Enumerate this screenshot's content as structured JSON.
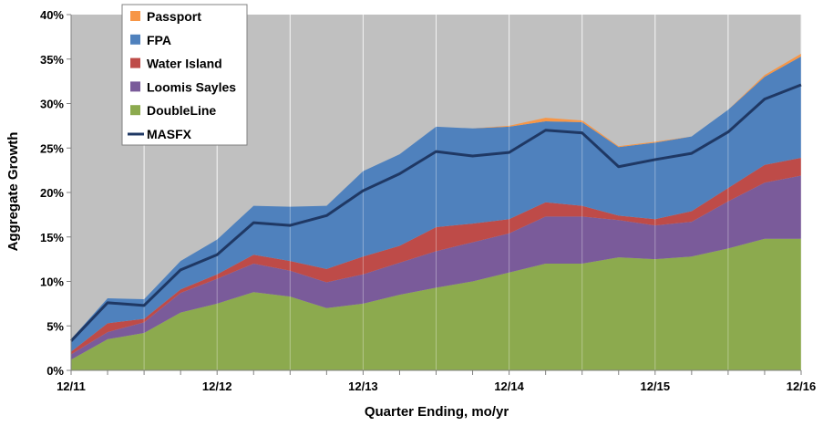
{
  "chart_data": {
    "type": "area",
    "title": "",
    "xlabel": "Quarter Ending, mo/yr",
    "ylabel": "Aggregate Growth",
    "ylim": [
      0,
      40
    ],
    "yticks": [
      "0%",
      "5%",
      "10%",
      "15%",
      "20%",
      "25%",
      "30%",
      "35%",
      "40%"
    ],
    "xtick_labels": [
      "12/11",
      "12/12",
      "12/13",
      "12/14",
      "12/15",
      "12/16"
    ],
    "x": [
      0,
      1,
      2,
      3,
      4,
      5,
      6,
      7,
      8,
      9,
      10,
      11,
      12,
      13,
      14,
      15,
      16,
      17,
      18,
      19,
      20
    ],
    "legend_position": "top-left",
    "stacked_series": [
      {
        "name": "DoubleLine",
        "color": "#8CAA4E",
        "values": [
          1.2,
          3.5,
          4.2,
          6.5,
          7.5,
          8.8,
          8.3,
          7.0,
          7.5,
          8.5,
          9.3,
          10.0,
          11.0,
          12.0,
          12.0,
          12.7,
          12.5,
          12.8,
          13.7,
          14.8,
          14.8
        ]
      },
      {
        "name": "Loomis Sayles",
        "color": "#7A5B9A",
        "values": [
          0.6,
          0.8,
          1.2,
          2.2,
          2.8,
          3.2,
          2.9,
          2.9,
          3.3,
          3.6,
          4.1,
          4.4,
          4.4,
          5.3,
          5.3,
          4.2,
          3.8,
          3.9,
          5.3,
          6.3,
          7.1
        ]
      },
      {
        "name": "Water Island",
        "color": "#BE4B48",
        "values": [
          0.3,
          1.0,
          0.4,
          0.4,
          0.5,
          1.0,
          1.1,
          1.5,
          2.0,
          1.9,
          2.7,
          2.1,
          1.6,
          1.6,
          1.2,
          0.5,
          0.7,
          1.2,
          1.5,
          2.0,
          2.0
        ]
      },
      {
        "name": "FPA",
        "color": "#4F81BD",
        "values": [
          1.4,
          2.8,
          2.2,
          3.2,
          3.9,
          5.5,
          6.1,
          7.1,
          9.6,
          10.3,
          11.3,
          10.7,
          10.4,
          9.1,
          9.4,
          7.7,
          8.6,
          8.4,
          8.8,
          9.9,
          11.4
        ]
      },
      {
        "name": "Passport",
        "color": "#F79646",
        "values": [
          0.0,
          0.0,
          0.0,
          0.0,
          0.0,
          0.0,
          0.0,
          0.0,
          0.0,
          0.0,
          0.0,
          0.0,
          0.1,
          0.4,
          0.2,
          0.1,
          0.1,
          0.0,
          0.0,
          0.2,
          0.3
        ]
      }
    ],
    "line_series": {
      "name": "MASFX",
      "color": "#1F3864",
      "values": [
        3.3,
        7.6,
        7.3,
        11.3,
        13.0,
        16.6,
        16.3,
        17.4,
        20.2,
        22.1,
        24.6,
        24.1,
        24.5,
        27.0,
        26.7,
        22.9,
        23.7,
        24.4,
        26.8,
        30.5,
        32.1
      ]
    },
    "legend": [
      {
        "name": "Passport",
        "kind": "box",
        "color": "#F79646"
      },
      {
        "name": "FPA",
        "kind": "box",
        "color": "#4F81BD"
      },
      {
        "name": "Water Island",
        "kind": "box",
        "color": "#BE4B48"
      },
      {
        "name": "Loomis Sayles",
        "kind": "box",
        "color": "#7A5B9A"
      },
      {
        "name": "DoubleLine",
        "kind": "box",
        "color": "#8CAA4E"
      },
      {
        "name": "MASFX",
        "kind": "line",
        "color": "#1F3864"
      }
    ]
  }
}
